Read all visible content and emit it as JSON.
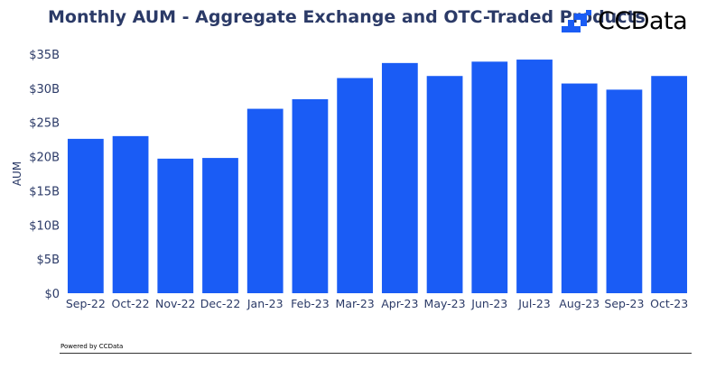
{
  "header": {
    "title": "Monthly AUM - Aggregate Exchange and OTC-Traded Products",
    "logo_text": "CCData"
  },
  "footer": {
    "powered_by": "Powered by CCData"
  },
  "colors": {
    "bar": "#1a5cf5",
    "title": "#2b3a67",
    "axis_text": "#2b3a67"
  },
  "chart_data": {
    "type": "bar",
    "title": "Monthly AUM - Aggregate Exchange and OTC-Traded Products",
    "ylabel": "AUM",
    "xlabel": "",
    "categories": [
      "Sep-22",
      "Oct-22",
      "Nov-22",
      "Dec-22",
      "Jan-23",
      "Feb-23",
      "Mar-23",
      "Apr-23",
      "May-23",
      "Jun-23",
      "Jul-23",
      "Aug-23",
      "Sep-23",
      "Oct-23"
    ],
    "values": [
      22.6,
      23.0,
      19.7,
      19.8,
      27.0,
      28.4,
      31.5,
      33.7,
      31.8,
      33.9,
      34.2,
      30.7,
      29.8,
      31.8
    ],
    "unit": "billion USD",
    "ylim": [
      0,
      35
    ],
    "yticks": [
      0,
      5,
      10,
      15,
      20,
      25,
      30,
      35
    ],
    "ytick_labels": [
      "$0",
      "$5B",
      "$10B",
      "$15B",
      "$20B",
      "$25B",
      "$30B",
      "$35B"
    ],
    "grid": false,
    "legend": "none"
  }
}
